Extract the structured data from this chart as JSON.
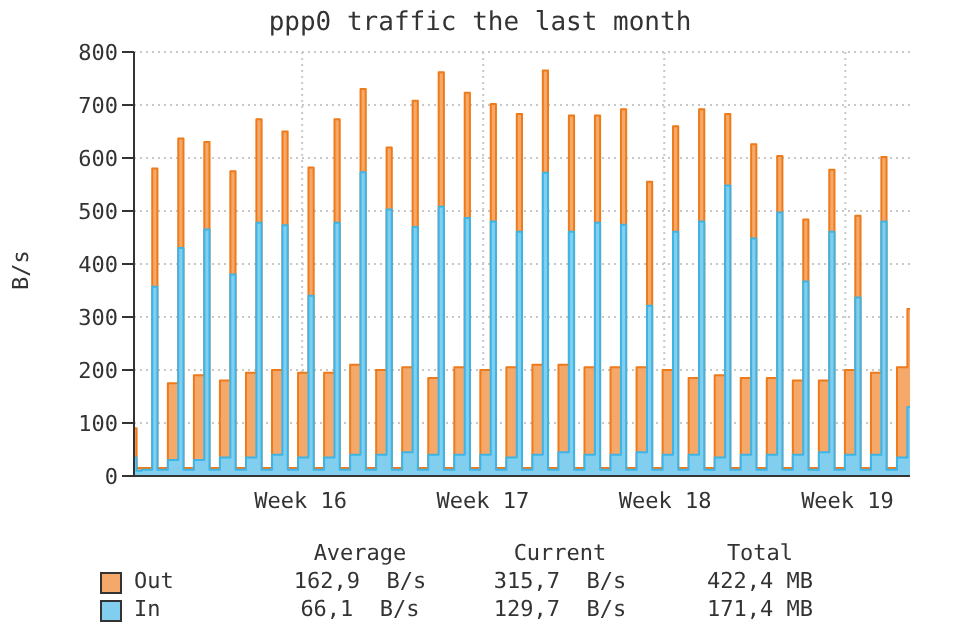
{
  "chart_data": {
    "type": "area",
    "title": "ppp0 traffic the last month",
    "ylabel": "B/s",
    "categories": [
      null,
      null,
      null,
      null,
      null,
      null,
      null,
      null,
      null,
      null,
      null,
      null,
      null,
      null,
      null,
      null,
      null,
      null,
      null,
      null,
      null,
      null,
      null,
      null,
      null,
      null,
      null,
      null,
      null,
      null,
      null,
      null,
      "Week 16",
      null,
      null,
      null,
      null,
      null,
      null,
      null,
      null,
      null,
      null,
      null,
      null,
      null,
      null,
      null,
      null,
      null,
      null,
      null,
      null,
      null,
      null,
      null,
      null,
      null,
      null,
      null,
      null,
      null,
      null,
      null,
      null,
      null,
      null,
      "Week 17",
      null,
      null,
      null,
      null,
      null,
      null,
      null,
      null,
      null,
      null,
      null,
      null,
      null,
      null,
      null,
      null,
      null,
      null,
      null,
      null,
      null,
      null,
      null,
      null,
      null,
      null,
      null,
      null,
      null,
      null,
      null,
      null,
      null,
      null,
      "Week 18",
      null,
      null,
      null,
      null,
      null,
      null,
      null,
      null,
      null,
      null,
      null,
      null,
      null,
      null,
      null,
      null,
      null,
      null,
      null,
      null,
      null,
      null,
      null,
      null,
      null,
      null,
      null,
      null,
      null,
      null,
      null,
      null,
      null,
      null,
      "Week 19",
      null,
      null,
      null,
      null,
      null,
      null,
      null,
      null,
      null,
      null,
      null,
      null
    ],
    "series": [
      {
        "name": "Out",
        "color": "#ee7a1a",
        "values": [
          90,
          15,
          15,
          15,
          580,
          15,
          15,
          175,
          175,
          637,
          15,
          15,
          190,
          190,
          630,
          15,
          15,
          180,
          180,
          575,
          15,
          15,
          195,
          195,
          673,
          15,
          15,
          200,
          200,
          650,
          15,
          15,
          195,
          195,
          582,
          15,
          15,
          195,
          195,
          673,
          15,
          15,
          210,
          210,
          730,
          15,
          15,
          200,
          200,
          620,
          15,
          15,
          205,
          205,
          708,
          15,
          15,
          185,
          185,
          762,
          15,
          15,
          205,
          205,
          723,
          15,
          15,
          200,
          200,
          702,
          15,
          15,
          205,
          205,
          683,
          15,
          15,
          210,
          210,
          765,
          15,
          15,
          210,
          210,
          680,
          15,
          15,
          205,
          205,
          680,
          15,
          15,
          205,
          205,
          692,
          15,
          15,
          205,
          205,
          555,
          15,
          15,
          200,
          200,
          660,
          15,
          15,
          185,
          185,
          692,
          15,
          15,
          190,
          190,
          683,
          15,
          15,
          185,
          185,
          626,
          15,
          15,
          185,
          185,
          604,
          15,
          15,
          180,
          180,
          484,
          15,
          15,
          180,
          180,
          578,
          15,
          15,
          200,
          200,
          491,
          15,
          15,
          195,
          195,
          602,
          15,
          15,
          205,
          205,
          315
        ]
      },
      {
        "name": "In",
        "color": "#3db4e6",
        "values": [
          35,
          10,
          12,
          12,
          357,
          12,
          12,
          30,
          30,
          430,
          12,
          12,
          30,
          30,
          465,
          12,
          12,
          35,
          35,
          380,
          12,
          12,
          35,
          35,
          478,
          12,
          12,
          40,
          40,
          473,
          12,
          12,
          35,
          35,
          340,
          12,
          12,
          35,
          35,
          478,
          12,
          12,
          40,
          40,
          573,
          12,
          12,
          40,
          40,
          503,
          12,
          12,
          45,
          45,
          470,
          12,
          12,
          40,
          40,
          508,
          12,
          12,
          40,
          40,
          487,
          12,
          12,
          40,
          40,
          480,
          12,
          12,
          35,
          35,
          461,
          12,
          12,
          40,
          40,
          572,
          12,
          12,
          45,
          45,
          461,
          12,
          12,
          40,
          40,
          478,
          12,
          12,
          40,
          40,
          474,
          12,
          12,
          45,
          45,
          321,
          12,
          12,
          40,
          40,
          461,
          12,
          12,
          40,
          40,
          480,
          12,
          12,
          35,
          35,
          548,
          12,
          12,
          40,
          40,
          448,
          12,
          12,
          40,
          40,
          497,
          12,
          12,
          40,
          40,
          367,
          12,
          12,
          45,
          45,
          461,
          12,
          12,
          40,
          40,
          337,
          12,
          12,
          40,
          40,
          480,
          12,
          12,
          35,
          35,
          130
        ]
      }
    ],
    "ylim": [
      0,
      800
    ],
    "yticks": [
      0,
      100,
      200,
      300,
      400,
      500,
      600,
      700,
      800
    ],
    "grid": true,
    "legend": "bottom",
    "annotations": [
      "Average",
      "Current",
      "Total",
      "162,9  B/s",
      "315,7  B/s",
      "422,4 MB",
      "66,1  B/s",
      "129,7  B/s",
      "171,4 MB"
    ]
  }
}
